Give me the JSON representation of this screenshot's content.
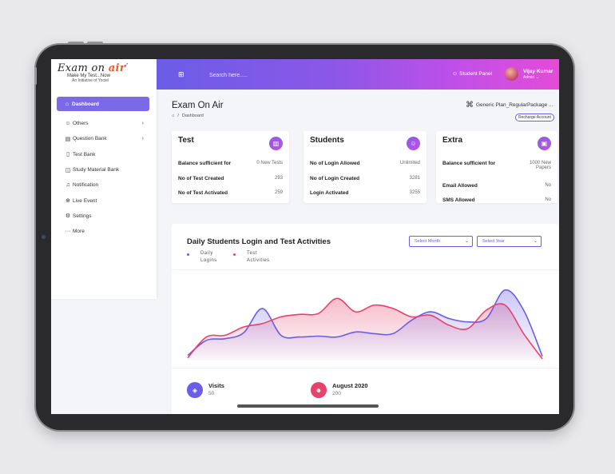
{
  "logo": {
    "text_main": "Exam on ",
    "text_accent": "air",
    "tagline": "Make My Test...Now",
    "initiative": "An Initiative of Yoctel"
  },
  "sidebar": {
    "items": [
      {
        "label": "Dashboard",
        "icon": "home-icon",
        "glyph": "⌂",
        "active": true,
        "has_children": false
      },
      {
        "label": "Others",
        "icon": "user-icon",
        "glyph": "☺",
        "active": false,
        "has_children": true
      },
      {
        "label": "Question Bank",
        "icon": "document-icon",
        "glyph": "▤",
        "active": false,
        "has_children": true
      },
      {
        "label": "Test Bank",
        "icon": "book-icon",
        "glyph": "▯",
        "active": false,
        "has_children": false
      },
      {
        "label": "Study Material Bank",
        "icon": "open-book-icon",
        "glyph": "◫",
        "active": false,
        "has_children": false
      },
      {
        "label": "Notification",
        "icon": "bell-icon",
        "glyph": "♫",
        "active": false,
        "has_children": false
      },
      {
        "label": "Live Event",
        "icon": "globe-icon",
        "glyph": "⊕",
        "active": false,
        "has_children": false
      },
      {
        "label": "Settings",
        "icon": "gear-icon",
        "glyph": "⚙",
        "active": false,
        "has_children": false
      },
      {
        "label": "More",
        "icon": "more-icon",
        "glyph": "···",
        "active": false,
        "has_children": false
      }
    ]
  },
  "topbar": {
    "search_placeholder": "Search here.....",
    "student_panel": "Student Panel",
    "user_name": "Vijay Kumar",
    "user_role": "Admin",
    "role_caret": "⌄"
  },
  "page": {
    "title": "Exam On Air",
    "breadcrumb_sep": "/",
    "breadcrumb": "Dashboard",
    "plan": "Generic Plan_RegularPackage ...",
    "recharge_label": "Recharge Account"
  },
  "cards": [
    {
      "title": "Test",
      "icon": "book-icon",
      "glyph": "▥",
      "rows": [
        {
          "k": "Balance sufficient for",
          "v": "0 New Tests"
        },
        {
          "k": "No of Test Created",
          "v": "293"
        },
        {
          "k": "No of Test Activated",
          "v": "259"
        }
      ]
    },
    {
      "title": "Students",
      "icon": "users-icon",
      "glyph": "☺",
      "rows": [
        {
          "k": "No of Login Allowed",
          "v": "Unlimited"
        },
        {
          "k": "No of Login Created",
          "v": "3281"
        },
        {
          "k": "Login Activated",
          "v": "3255"
        }
      ]
    },
    {
      "title": "Extra",
      "icon": "gift-icon",
      "glyph": "▣",
      "rows": [
        {
          "k": "Balance sufficient for",
          "v": "1000 New Papers"
        },
        {
          "k": "Email Allowed",
          "v": "No"
        },
        {
          "k": "SMS Allowed",
          "v": "No"
        }
      ]
    }
  ],
  "chart": {
    "title": "Daily Students Login and Test Activities",
    "select_month": "Select Month",
    "select_year": "Select Year",
    "caret": "⌄"
  },
  "chart_data": {
    "type": "area",
    "title": "Daily Students Login and Test Activities",
    "xlabel": "",
    "ylabel": "",
    "x": [
      1,
      2,
      3,
      4,
      5,
      6,
      7,
      8,
      9,
      10,
      11,
      12,
      13,
      14,
      15,
      16,
      17,
      18,
      19,
      20
    ],
    "series": [
      {
        "name": "Daily Logins",
        "color": "#6a5de6",
        "values": [
          6,
          24,
          26,
          33,
          62,
          30,
          28,
          29,
          28,
          34,
          32,
          32,
          48,
          58,
          50,
          46,
          50,
          84,
          60,
          5
        ]
      },
      {
        "name": "Test Activities",
        "color": "#e8416b",
        "values": [
          3,
          28,
          30,
          40,
          44,
          52,
          55,
          56,
          74,
          58,
          66,
          62,
          52,
          54,
          42,
          38,
          60,
          66,
          32,
          2
        ]
      }
    ],
    "ylim": [
      0,
      100
    ],
    "grid": false,
    "legend": "top-left"
  },
  "stats": [
    {
      "label": "Visits",
      "value": "50",
      "icon": "visits-icon",
      "glyph": "◈",
      "color": "#6a5de6"
    },
    {
      "label": "August 2020",
      "value": "200",
      "icon": "user-icon",
      "glyph": "☻",
      "color": "#e8416b"
    }
  ]
}
